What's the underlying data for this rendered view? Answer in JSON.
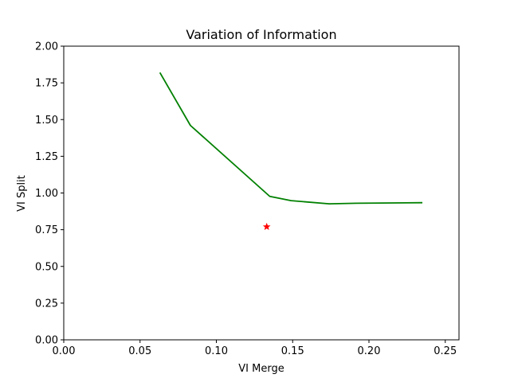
{
  "chart_data": {
    "type": "line",
    "title": "Variation of Information",
    "xlabel": "VI Merge",
    "ylabel": "VI Split",
    "xlim": [
      0,
      0.259
    ],
    "ylim": [
      0,
      2.0
    ],
    "xticks": [
      0.0,
      0.05,
      0.1,
      0.15,
      0.2,
      0.25
    ],
    "xtick_labels": [
      "0.00",
      "0.05",
      "0.10",
      "0.15",
      "0.20",
      "0.25"
    ],
    "yticks": [
      0.0,
      0.25,
      0.5,
      0.75,
      1.0,
      1.25,
      1.5,
      1.75,
      2.0
    ],
    "ytick_labels": [
      "0.00",
      "0.25",
      "0.50",
      "0.75",
      "1.00",
      "1.25",
      "1.50",
      "1.75",
      "2.00"
    ],
    "grid": false,
    "series": [
      {
        "kind": "line",
        "color": "#008000",
        "x": [
          0.063,
          0.083,
          0.135,
          0.149,
          0.174,
          0.192,
          0.235
        ],
        "y": [
          1.82,
          1.46,
          0.977,
          0.948,
          0.926,
          0.93,
          0.934
        ]
      },
      {
        "kind": "point",
        "marker": "star",
        "color": "#ff0000",
        "x": [
          0.133
        ],
        "y": [
          0.77
        ]
      }
    ]
  }
}
